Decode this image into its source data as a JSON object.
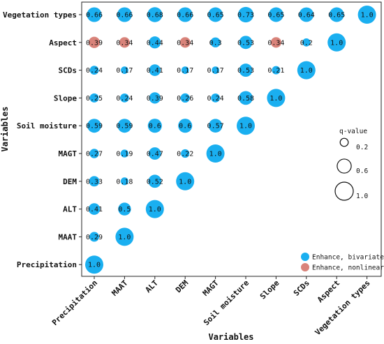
{
  "chart_data": {
    "type": "scatter",
    "subtype": "triangular bubble matrix",
    "xlabel": "Variables",
    "ylabel": "Variables",
    "variables": [
      "Precipitation",
      "MAAT",
      "ALT",
      "DEM",
      "MAGT",
      "Soil moisture",
      "Slope",
      "SCDs",
      "Aspect",
      "Vegetation types"
    ],
    "rows": [
      {
        "name": "Vegetation types",
        "values": [
          0.66,
          0.66,
          0.68,
          0.66,
          0.65,
          0.73,
          0.65,
          0.64,
          0.65,
          1.0
        ],
        "labels": [
          "0.66",
          "0.66",
          "0.68",
          "0.66",
          "0.65",
          "0.73",
          "0.65",
          "0.64",
          "0.65",
          "1.0"
        ],
        "types": [
          "b",
          "b",
          "b",
          "b",
          "b",
          "b",
          "b",
          "b",
          "b",
          "b"
        ]
      },
      {
        "name": "Aspect",
        "values": [
          0.39,
          0.34,
          0.44,
          0.34,
          0.3,
          0.53,
          0.34,
          0.2,
          1.0
        ],
        "labels": [
          "0.39",
          "0.34",
          "0.44",
          "0.34",
          "0.3",
          "0.53",
          "0.34",
          "0.2",
          "1.0"
        ],
        "types": [
          "n",
          "n",
          "b",
          "n",
          "b",
          "b",
          "n",
          "b",
          "b"
        ]
      },
      {
        "name": "SCDs",
        "values": [
          0.24,
          0.17,
          0.41,
          0.17,
          0.17,
          0.53,
          0.21,
          1.0
        ],
        "labels": [
          "0.24",
          "0.17",
          "0.41",
          "0.17",
          "0.17",
          "0.53",
          "0.21",
          "1.0"
        ],
        "types": [
          "b",
          "b",
          "b",
          "b",
          "b",
          "b",
          "b",
          "b"
        ]
      },
      {
        "name": "Slope",
        "values": [
          0.25,
          0.24,
          0.39,
          0.26,
          0.24,
          0.58,
          1.0
        ],
        "labels": [
          "0.25",
          "0.24",
          "0.39",
          "0.26",
          "0.24",
          "0.58",
          "1.0"
        ],
        "types": [
          "b",
          "b",
          "b",
          "b",
          "b",
          "b",
          "b"
        ]
      },
      {
        "name": "Soil moisture",
        "values": [
          0.59,
          0.59,
          0.6,
          0.6,
          0.57,
          1.0
        ],
        "labels": [
          "0.59",
          "0.59",
          "0.6",
          "0.6",
          "0.57",
          "1.0"
        ],
        "types": [
          "b",
          "b",
          "b",
          "b",
          "b",
          "b"
        ]
      },
      {
        "name": "MAGT",
        "values": [
          0.27,
          0.19,
          0.47,
          0.22,
          1.0
        ],
        "labels": [
          "0.27",
          "0.19",
          "0.47",
          "0.22",
          "1.0"
        ],
        "types": [
          "b",
          "b",
          "b",
          "b",
          "b"
        ]
      },
      {
        "name": "DEM",
        "values": [
          0.33,
          0.18,
          0.52,
          1.0
        ],
        "labels": [
          "0.33",
          "0.18",
          "0.52",
          "1.0"
        ],
        "types": [
          "b",
          "b",
          "b",
          "b"
        ]
      },
      {
        "name": "ALT",
        "values": [
          0.41,
          0.5,
          1.0
        ],
        "labels": [
          "0.41",
          "0.5",
          "1.0"
        ],
        "types": [
          "b",
          "b",
          "b"
        ]
      },
      {
        "name": "MAAT",
        "values": [
          0.29,
          1.0
        ],
        "labels": [
          "0.29",
          "1.0"
        ],
        "types": [
          "b",
          "b"
        ]
      },
      {
        "name": "Precipitation",
        "values": [
          1.0
        ],
        "labels": [
          "1.0"
        ],
        "types": [
          "b"
        ]
      }
    ],
    "size_legend": {
      "title": "q-value",
      "values": [
        0.2,
        0.6,
        1.0
      ],
      "labels": [
        "0.2",
        "0.6",
        "1.0"
      ]
    },
    "color_legend": [
      {
        "key": "b",
        "label": "Enhance, bivariate",
        "color": "#1AAFF0"
      },
      {
        "key": "n",
        "label": "Enhance, nonlinear",
        "color": "#D9837A"
      }
    ],
    "grid": false
  }
}
